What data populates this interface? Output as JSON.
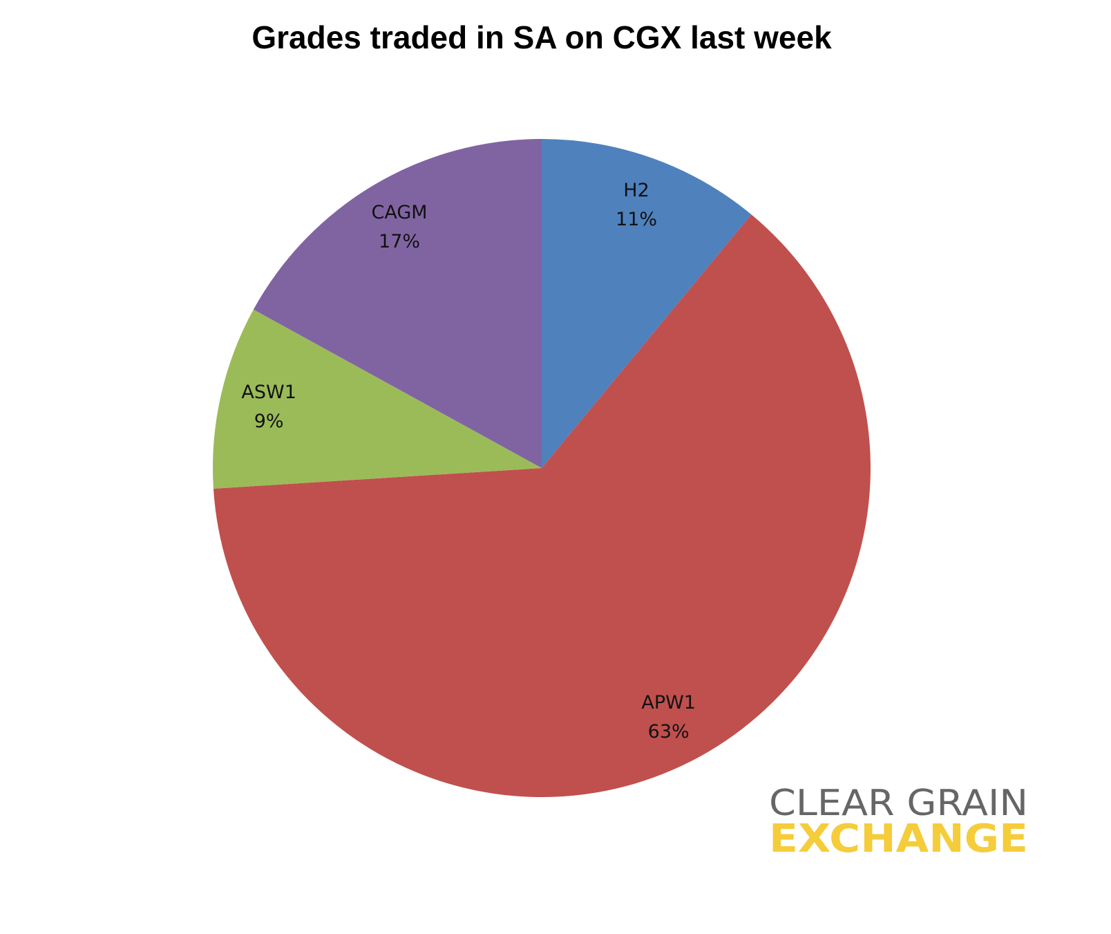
{
  "chart_data": {
    "type": "pie",
    "title": "Grades traded in SA on CGX last week",
    "categories": [
      "H2",
      "APW1",
      "ASW1",
      "CAGM"
    ],
    "values": [
      11,
      63,
      9,
      17
    ],
    "value_labels": [
      "11%",
      "63%",
      "9%",
      "17%"
    ],
    "colors": [
      "#4f81bd",
      "#c0504d",
      "#9bbb59",
      "#8064a2"
    ]
  },
  "logo": {
    "line1": "CLEAR GRAIN",
    "line2": "EXCHANGE"
  }
}
